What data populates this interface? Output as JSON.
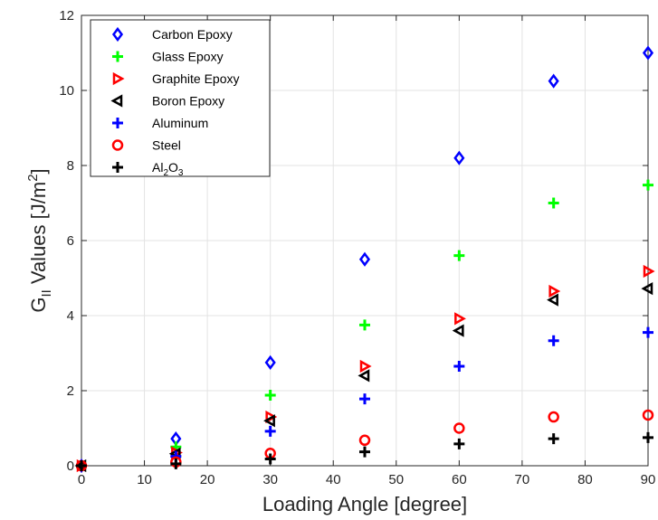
{
  "chart_data": {
    "type": "scatter",
    "xlabel": "Loading Angle [degree]",
    "ylabel": {
      "prefix": "G",
      "sub": "II",
      "mid": " Values [J/m",
      "sup": "2",
      "suffix": "]"
    },
    "xlim": [
      0,
      90
    ],
    "ylim": [
      0,
      12
    ],
    "xticks": [
      "0",
      "10",
      "20",
      "30",
      "40",
      "50",
      "60",
      "70",
      "80",
      "90"
    ],
    "yticks": [
      "0",
      "2",
      "4",
      "6",
      "8",
      "10",
      "12"
    ],
    "grid": true,
    "legend_position": "top-left",
    "x": [
      0,
      15,
      30,
      45,
      60,
      75,
      90
    ],
    "series": [
      {
        "name": "Carbon Epoxy",
        "marker": "diamond",
        "color": "#0000ff",
        "values": [
          0,
          0.72,
          2.75,
          5.5,
          8.2,
          10.25,
          11
        ]
      },
      {
        "name": "Glass Epoxy",
        "marker": "plus",
        "color": "#00ff00",
        "values": [
          0,
          0.5,
          1.88,
          3.75,
          5.6,
          7,
          7.48
        ]
      },
      {
        "name": "Graphite Epoxy",
        "marker": "triangle-right",
        "color": "#ff0000",
        "values": [
          0,
          0.35,
          1.3,
          2.65,
          3.92,
          4.65,
          5.18
        ]
      },
      {
        "name": "Boron Epoxy",
        "marker": "triangle-left",
        "color": "#000000",
        "values": [
          0,
          0.32,
          1.2,
          2.4,
          3.6,
          4.42,
          4.72
        ]
      },
      {
        "name": "Aluminum",
        "marker": "plus",
        "color": "#0000ff",
        "values": [
          0,
          0.25,
          0.92,
          1.78,
          2.65,
          3.33,
          3.55
        ]
      },
      {
        "name": "Steel",
        "marker": "circle",
        "color": "#ff0000",
        "values": [
          0,
          0.1,
          0.33,
          0.68,
          1,
          1.3,
          1.35
        ]
      },
      {
        "name": {
          "base": "Al",
          "sub1": "2",
          "mid": "O",
          "sub2": "3"
        },
        "marker": "plus",
        "color": "#000000",
        "values": [
          0,
          0.05,
          0.18,
          0.37,
          0.58,
          0.72,
          0.75
        ]
      }
    ]
  }
}
